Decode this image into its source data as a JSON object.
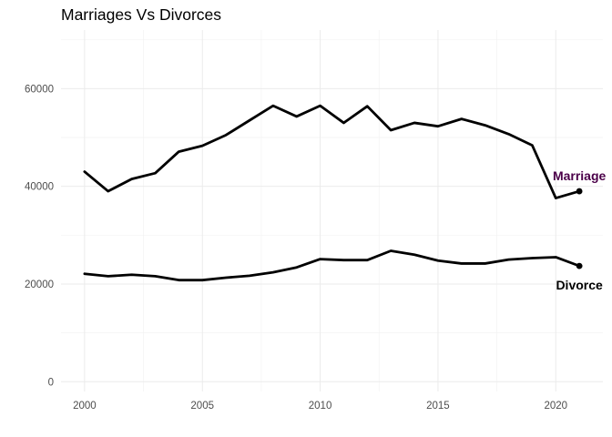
{
  "chart_data": {
    "type": "line",
    "title": "Marriages Vs Divorces",
    "xlabel": "",
    "ylabel": "",
    "x": [
      2000,
      2001,
      2002,
      2003,
      2004,
      2005,
      2006,
      2007,
      2008,
      2009,
      2010,
      2011,
      2012,
      2013,
      2014,
      2015,
      2016,
      2017,
      2018,
      2019,
      2020,
      2021
    ],
    "series": [
      {
        "name": "Marriage",
        "values": [
          43000,
          39000,
          41500,
          42700,
          47100,
          48300,
          50500,
          53500,
          56500,
          54300,
          56500,
          53000,
          56400,
          51500,
          53000,
          52300,
          53800,
          52500,
          50700,
          48400,
          37600,
          39000
        ],
        "label_color": "#4b0049"
      },
      {
        "name": "Divorce",
        "values": [
          22100,
          21600,
          21900,
          21600,
          20800,
          20800,
          21300,
          21700,
          22400,
          23400,
          25100,
          24900,
          24900,
          26800,
          26000,
          24800,
          24200,
          24200,
          25000,
          25300,
          25500,
          23700
        ],
        "label_color": "#000000"
      }
    ],
    "x_ticks": [
      "2000",
      "2005",
      "2010",
      "2015",
      "2020"
    ],
    "y_ticks": [
      "0",
      "20000",
      "40000",
      "60000"
    ],
    "xlim": [
      1999,
      2022
    ],
    "ylim": [
      -2000,
      72000
    ],
    "grid": true,
    "legend": "none",
    "colors": {
      "line": "#000000",
      "grid": "#ebebeb",
      "tick_text": "#4d4d4d"
    }
  }
}
